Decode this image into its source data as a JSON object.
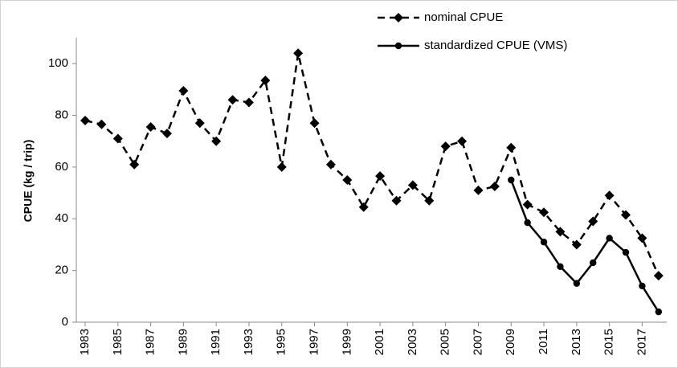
{
  "chart_data": {
    "type": "line",
    "ylabel": "CPUE  (kg / trip)",
    "x": [
      1983,
      1984,
      1985,
      1986,
      1987,
      1988,
      1989,
      1990,
      1991,
      1992,
      1993,
      1994,
      1995,
      1996,
      1997,
      1998,
      1999,
      2000,
      2001,
      2002,
      2003,
      2004,
      2005,
      2006,
      2007,
      2008,
      2009,
      2010,
      2011,
      2012,
      2013,
      2014,
      2015,
      2016,
      2017,
      2018
    ],
    "series": [
      {
        "name": "nominal CPUE",
        "color": "#000000",
        "dashed": true,
        "marker": "diamond",
        "values": [
          78,
          76.5,
          71,
          61,
          75.5,
          73,
          89.5,
          77,
          70,
          86,
          85,
          93.5,
          60,
          104,
          77,
          61,
          55,
          44.5,
          56.5,
          47,
          53,
          47,
          68,
          70,
          51,
          52.5,
          67.5,
          45.5,
          42.5,
          35,
          30,
          39,
          49,
          41.5,
          32.5,
          18
        ]
      },
      {
        "name": "standardized CPUE (VMS)",
        "color": "#000000",
        "dashed": false,
        "marker": "circle",
        "values": [
          null,
          null,
          null,
          null,
          null,
          null,
          null,
          null,
          null,
          null,
          null,
          null,
          null,
          null,
          null,
          null,
          null,
          null,
          null,
          null,
          null,
          null,
          null,
          null,
          null,
          null,
          55,
          38.5,
          31,
          21.5,
          15,
          23,
          32.5,
          27,
          14,
          4
        ]
      }
    ],
    "xlim": [
      1982.46,
      2018.5
    ],
    "xticks": [
      1983,
      1985,
      1987,
      1989,
      1991,
      1993,
      1995,
      1997,
      1999,
      2001,
      2003,
      2005,
      2007,
      2009,
      2011,
      2013,
      2015,
      2017
    ],
    "ylim": [
      0,
      110
    ],
    "yticks": [
      0,
      20,
      40,
      60,
      80,
      100
    ],
    "grid": false,
    "legend": "top-right"
  }
}
